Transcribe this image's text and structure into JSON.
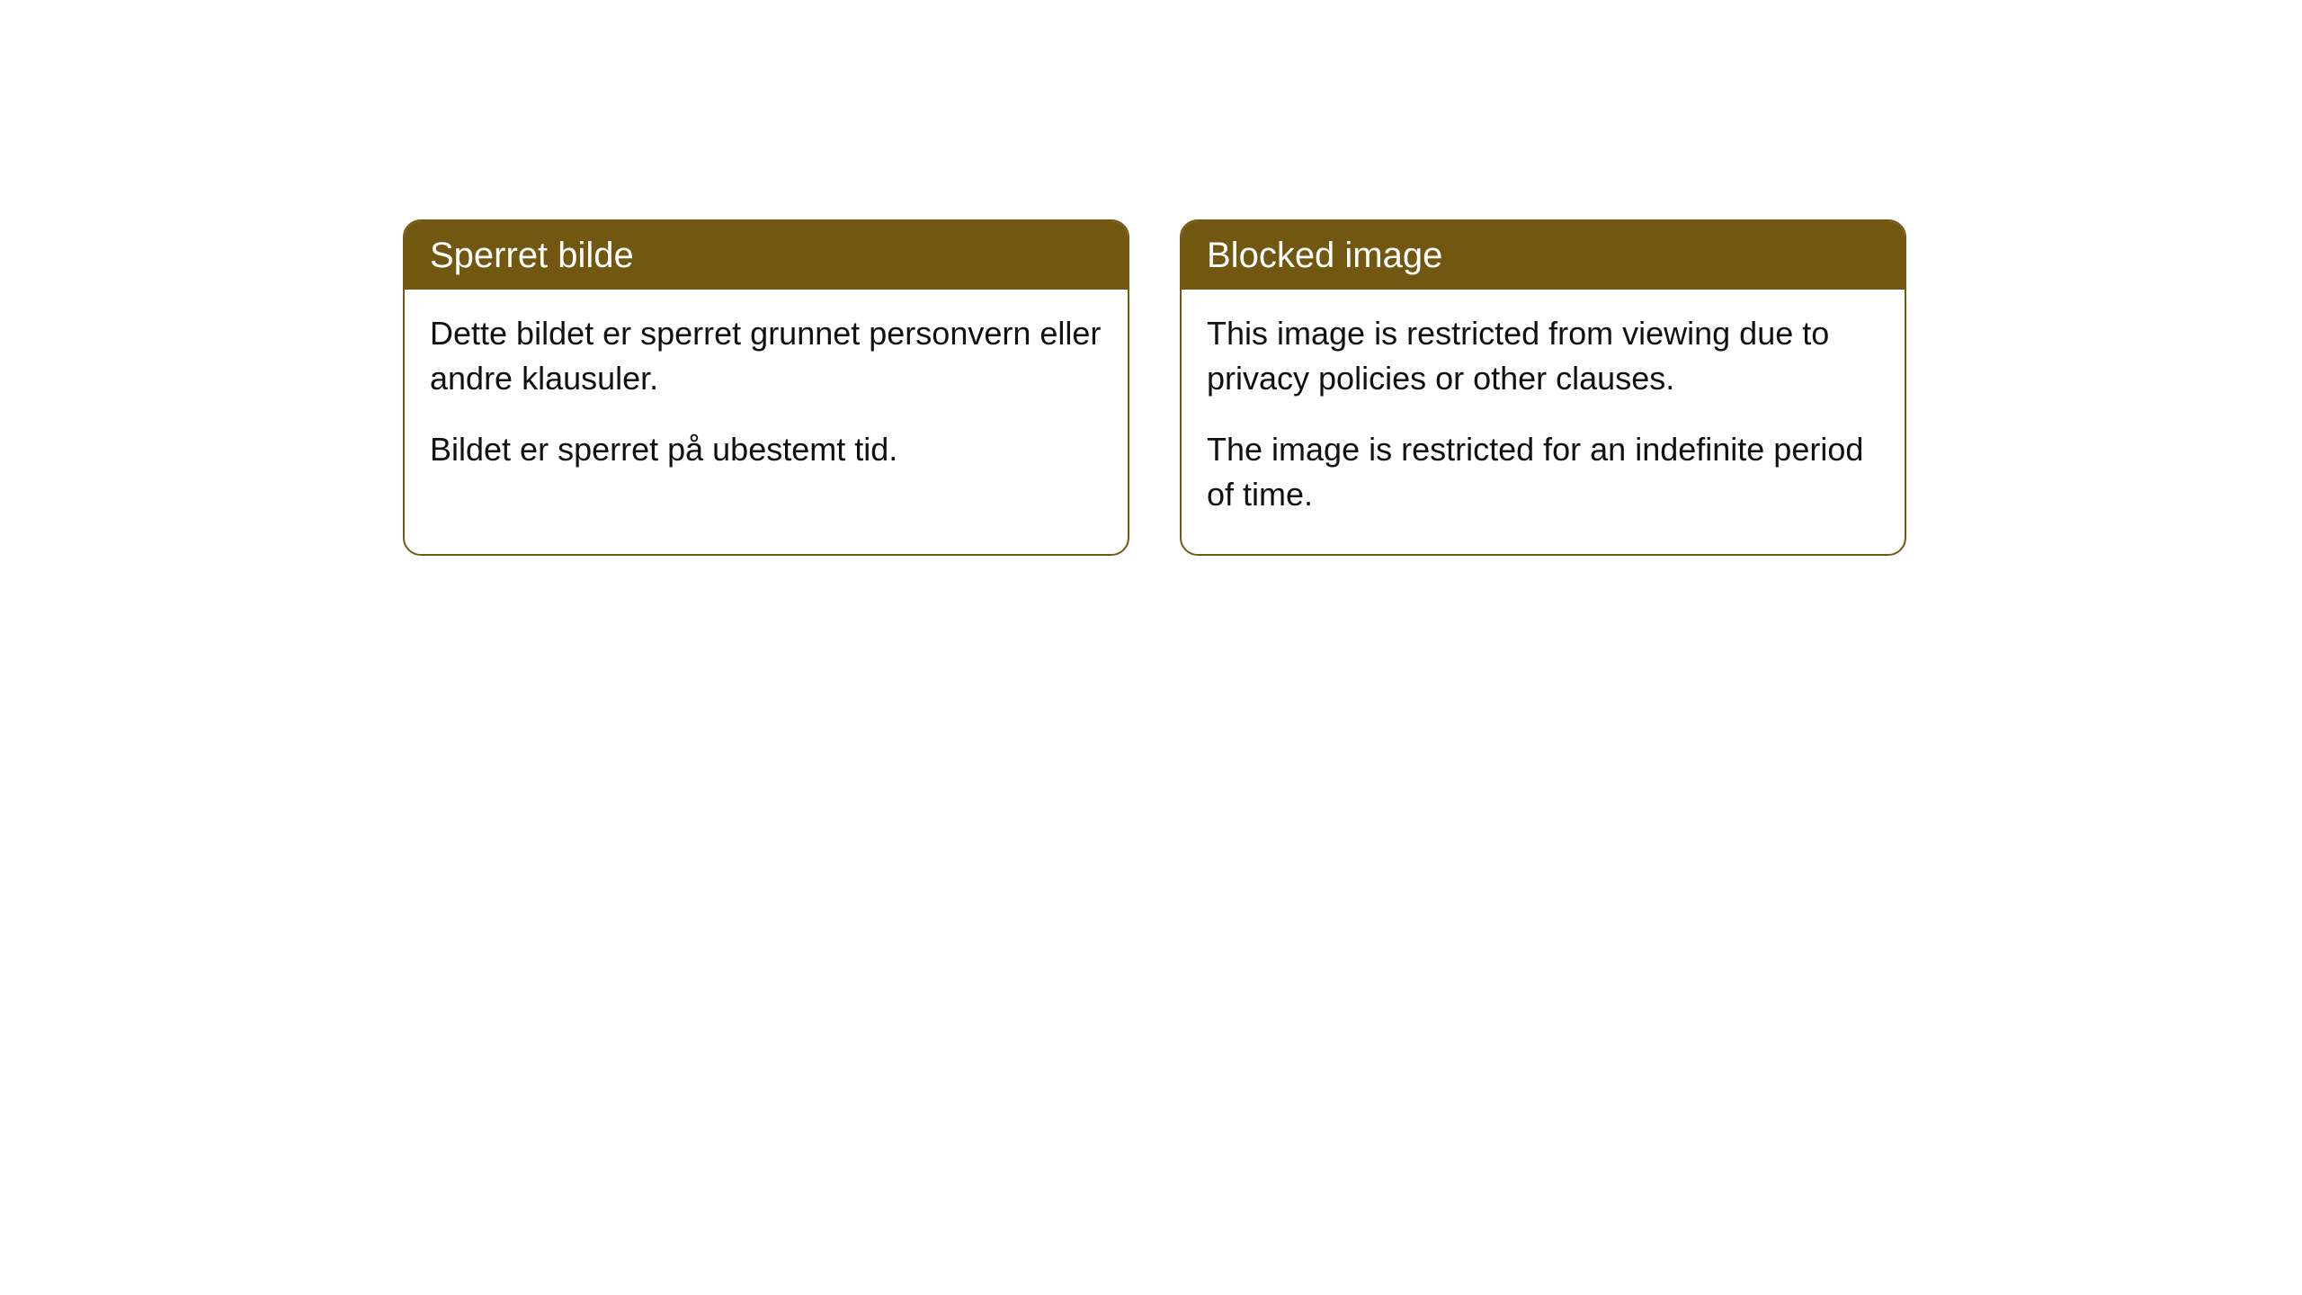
{
  "cards": [
    {
      "title": "Sperret bilde",
      "paragraph1": "Dette bildet er sperret grunnet personvern eller andre klausuler.",
      "paragraph2": "Bildet er sperret på ubestemt tid."
    },
    {
      "title": "Blocked image",
      "paragraph1": "This image is restricted from viewing due to privacy policies or other clauses.",
      "paragraph2": "The image is restricted for an indefinite period of time."
    }
  ],
  "styling": {
    "card_border_color": "#725711",
    "card_header_bg": "#725711",
    "card_header_text_color": "#ffffff",
    "card_body_bg": "#ffffff",
    "card_body_text_color": "#111111",
    "card_border_radius": 20,
    "header_fontsize": 40,
    "body_fontsize": 36
  }
}
